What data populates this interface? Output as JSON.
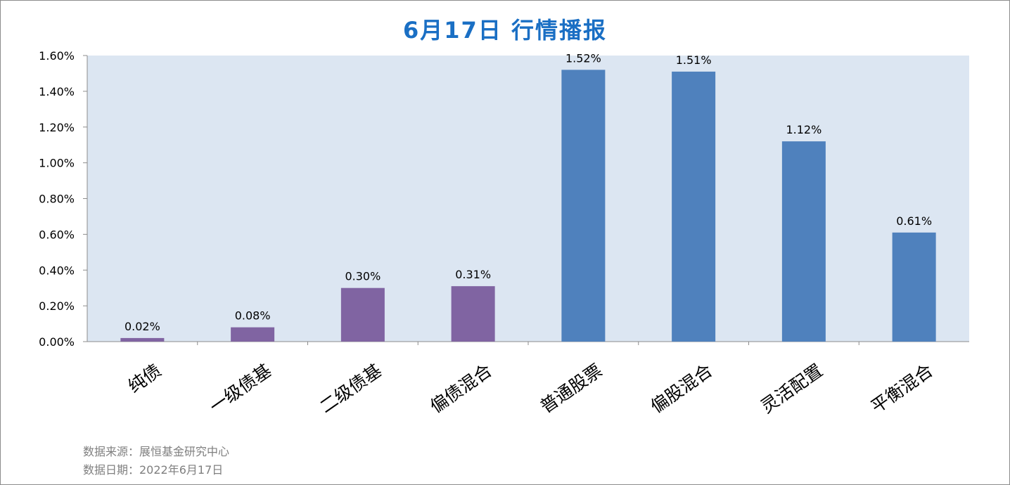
{
  "chart_data": {
    "type": "bar",
    "title": "6月17日  行情播报",
    "categories": [
      "纯债",
      "一级债基",
      "二级债基",
      "偏债混合",
      "普通股票",
      "偏股混合",
      "灵活配置",
      "平衡混合"
    ],
    "values": [
      0.02,
      0.08,
      0.3,
      0.31,
      1.52,
      1.51,
      1.12,
      0.61
    ],
    "data_labels": [
      "0.02%",
      "0.08%",
      "0.30%",
      "0.31%",
      "1.52%",
      "1.51%",
      "1.12%",
      "0.61%"
    ],
    "bar_colors": [
      "#8064a2",
      "#8064a2",
      "#8064a2",
      "#8064a2",
      "#4f81bd",
      "#4f81bd",
      "#4f81bd",
      "#4f81bd"
    ],
    "ylim": [
      0,
      1.6
    ],
    "y_ticks": [
      0,
      0.2,
      0.4,
      0.6,
      0.8,
      1.0,
      1.2,
      1.4,
      1.6
    ],
    "y_tick_labels": [
      "0.00%",
      "0.20%",
      "0.40%",
      "0.60%",
      "0.80%",
      "1.00%",
      "1.20%",
      "1.40%",
      "1.60%"
    ],
    "xlabel": "",
    "ylabel": "",
    "grid": false,
    "plot_background": "#dce6f2",
    "title_color": "#1a6fc4"
  },
  "footer": {
    "source": "数据来源：展恒基金研究中心",
    "date": "数据日期：2022年6月17日"
  }
}
